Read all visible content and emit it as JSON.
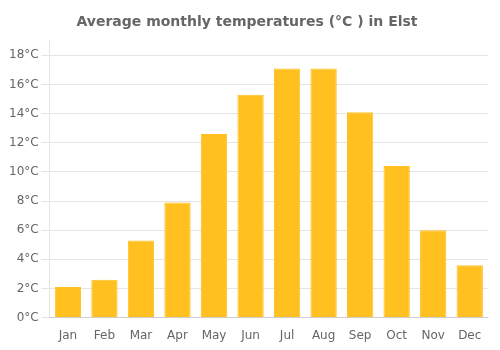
{
  "chart_data": {
    "type": "bar",
    "title": "Average monthly temperatures (°C ) in Elst",
    "categories": [
      "Jan",
      "Feb",
      "Mar",
      "Apr",
      "May",
      "Jun",
      "Jul",
      "Aug",
      "Sep",
      "Oct",
      "Nov",
      "Dec"
    ],
    "values": [
      2.1,
      2.6,
      5.3,
      7.9,
      12.6,
      15.3,
      17.1,
      17.1,
      14.1,
      10.4,
      6.0,
      3.6
    ],
    "color": "#FFC020",
    "ylim": [
      0,
      19
    ],
    "yticks": [
      {
        "value": 0,
        "label": "0°C"
      },
      {
        "value": 2,
        "label": "2°C"
      },
      {
        "value": 4,
        "label": "4°C"
      },
      {
        "value": 6,
        "label": "6°C"
      },
      {
        "value": 8,
        "label": "8°C"
      },
      {
        "value": 10,
        "label": "10°C"
      },
      {
        "value": 12,
        "label": "12°C"
      },
      {
        "value": 14,
        "label": "14°C"
      },
      {
        "value": 16,
        "label": "16°C"
      },
      {
        "value": 18,
        "label": "18°C"
      }
    ],
    "grid": true
  }
}
